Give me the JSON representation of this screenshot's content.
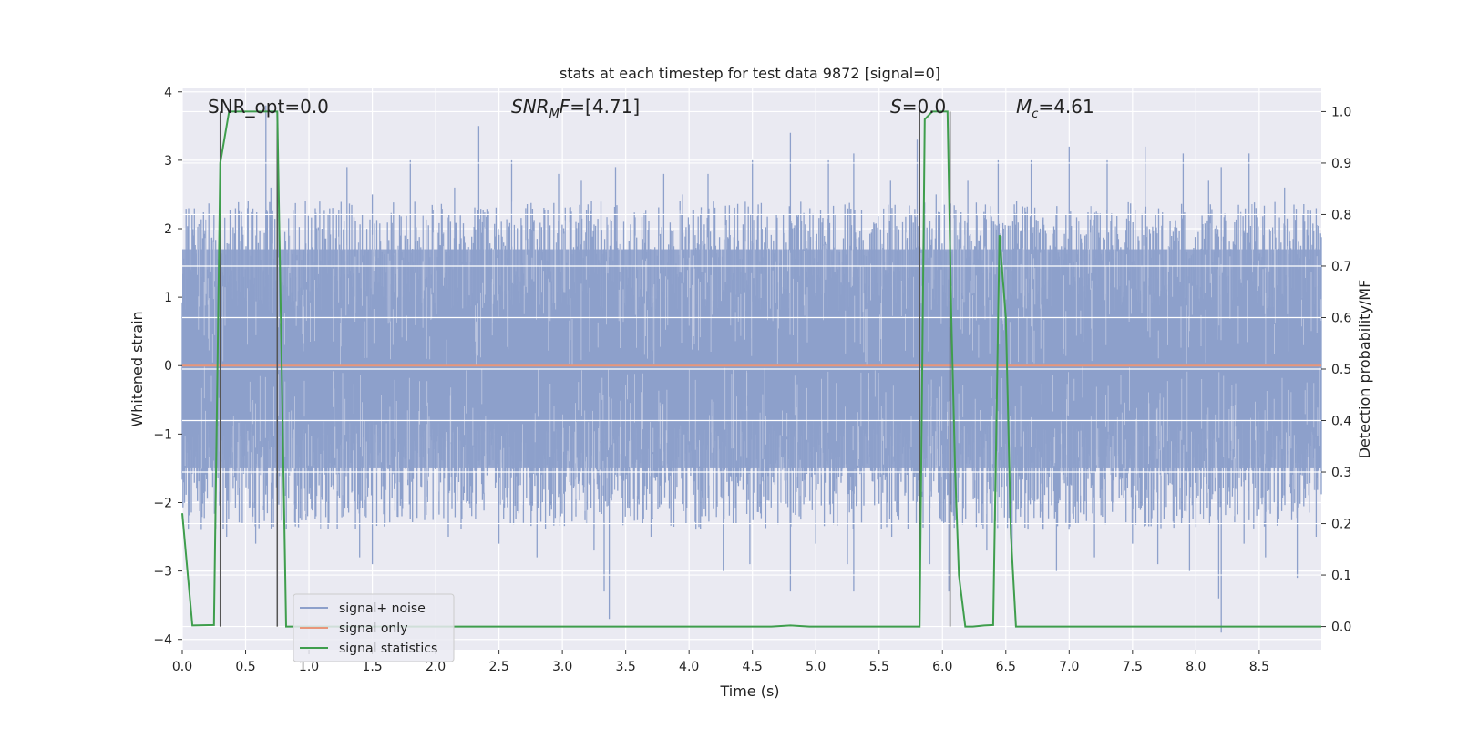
{
  "chart_data": {
    "type": "line",
    "title": "stats at each timestep for test data 9872 [signal=0]",
    "xlabel": "Time (s)",
    "ylabel": "Whitened strain",
    "y2label": "Detection probability/MF",
    "xlim": [
      0.0,
      8.99
    ],
    "ylim": [
      -4.15,
      4.05
    ],
    "y2lim": [
      -0.045,
      1.045
    ],
    "xticks": [
      0.0,
      0.5,
      1.0,
      1.5,
      2.0,
      2.5,
      3.0,
      3.5,
      4.0,
      4.5,
      5.0,
      5.5,
      6.0,
      6.5,
      7.0,
      7.5,
      8.0,
      8.5
    ],
    "xtick_labels": [
      "0.0",
      "0.5",
      "1.0",
      "1.5",
      "2.0",
      "2.5",
      "3.0",
      "3.5",
      "4.0",
      "4.5",
      "5.0",
      "5.5",
      "6.0",
      "6.5",
      "7.0",
      "7.5",
      "8.0",
      "8.5"
    ],
    "yticks": [
      -4,
      -3,
      -2,
      -1,
      0,
      1,
      2,
      3,
      4
    ],
    "ytick_labels": [
      "−4",
      "−3",
      "−2",
      "−1",
      "0",
      "1",
      "2",
      "3",
      "4"
    ],
    "y2ticks": [
      0.0,
      0.1,
      0.2,
      0.3,
      0.4,
      0.5,
      0.6,
      0.7,
      0.8,
      0.9,
      1.0
    ],
    "y2tick_labels": [
      "0.0",
      "0.1",
      "0.2",
      "0.3",
      "0.4",
      "0.5",
      "0.6",
      "0.7",
      "0.8",
      "0.9",
      "1.0"
    ],
    "grid": true,
    "legend_position": "lower-left",
    "annotations": {
      "snr_opt": {
        "prefix": "SNR_opt=",
        "value": "0.0"
      },
      "snr_mf": {
        "base": "SNR",
        "sub": "M",
        "suffix": "F=",
        "value": "[4.71]"
      },
      "s": {
        "prefix": "S",
        "suffix": "=",
        "value": "0.0"
      },
      "mc": {
        "base": "M",
        "sub": "c",
        "suffix": "=",
        "value": "4.61"
      }
    },
    "series": [
      {
        "name": "signal+ noise",
        "color": "#8da0cb",
        "description_kind": "noise",
        "duration_s": 8.99,
        "band_low": -1.5,
        "band_high": 1.7,
        "peaks_high": [
          [
            0.05,
            2.3
          ],
          [
            0.25,
            2.2
          ],
          [
            0.42,
            2.3
          ],
          [
            0.52,
            2.4
          ],
          [
            0.66,
            3.8
          ],
          [
            0.7,
            2.6
          ],
          [
            1.05,
            2.3
          ],
          [
            1.3,
            2.9
          ],
          [
            1.5,
            2.5
          ],
          [
            1.8,
            3.0
          ],
          [
            2.15,
            2.6
          ],
          [
            2.34,
            3.5
          ],
          [
            2.6,
            3.0
          ],
          [
            2.97,
            2.8
          ],
          [
            3.15,
            2.7
          ],
          [
            3.23,
            2.4
          ],
          [
            3.42,
            2.9
          ],
          [
            3.8,
            2.8
          ],
          [
            3.95,
            2.5
          ],
          [
            4.15,
            2.8
          ],
          [
            4.5,
            3.0
          ],
          [
            4.8,
            3.4
          ],
          [
            5.1,
            3.0
          ],
          [
            5.3,
            3.1
          ],
          [
            5.59,
            2.7
          ],
          [
            5.8,
            3.3
          ],
          [
            5.95,
            2.5
          ],
          [
            6.2,
            2.7
          ],
          [
            6.44,
            3.0
          ],
          [
            6.7,
            3.0
          ],
          [
            7.0,
            3.2
          ],
          [
            7.3,
            3.0
          ],
          [
            7.6,
            3.2
          ],
          [
            7.9,
            3.1
          ],
          [
            8.1,
            2.7
          ],
          [
            8.2,
            2.9
          ],
          [
            8.42,
            3.1
          ],
          [
            8.7,
            2.6
          ],
          [
            8.95,
            2.3
          ]
        ],
        "peaks_low": [
          [
            0.15,
            -2.4
          ],
          [
            0.35,
            -2.5
          ],
          [
            0.58,
            -2.6
          ],
          [
            0.9,
            -2.1
          ],
          [
            1.4,
            -2.8
          ],
          [
            1.5,
            -2.9
          ],
          [
            1.6,
            -2.3
          ],
          [
            2.1,
            -2.5
          ],
          [
            2.5,
            -2.6
          ],
          [
            2.8,
            -2.8
          ],
          [
            3.25,
            -2.7
          ],
          [
            3.33,
            -3.3
          ],
          [
            3.37,
            -3.7
          ],
          [
            3.7,
            -2.5
          ],
          [
            4.1,
            -2.2
          ],
          [
            4.27,
            -3.0
          ],
          [
            4.48,
            -2.9
          ],
          [
            4.8,
            -3.3
          ],
          [
            5.0,
            -2.6
          ],
          [
            5.25,
            -2.9
          ],
          [
            5.3,
            -3.3
          ],
          [
            5.6,
            -2.5
          ],
          [
            5.9,
            -2.9
          ],
          [
            6.05,
            -3.3
          ],
          [
            6.35,
            -2.7
          ],
          [
            6.55,
            -2.7
          ],
          [
            6.9,
            -3.0
          ],
          [
            7.2,
            -2.8
          ],
          [
            7.5,
            -2.6
          ],
          [
            7.7,
            -2.9
          ],
          [
            7.95,
            -3.0
          ],
          [
            8.18,
            -3.4
          ],
          [
            8.2,
            -3.9
          ],
          [
            8.38,
            -2.6
          ],
          [
            8.55,
            -2.8
          ],
          [
            8.8,
            -3.1
          ],
          [
            8.95,
            -2.5
          ]
        ]
      },
      {
        "name": "signal only",
        "color": "#e8967a",
        "x": [
          0.0,
          8.99
        ],
        "y": [
          0.0,
          0.0
        ]
      },
      {
        "name": "signal statistics",
        "color": "#3f9e4d",
        "x": [
          0.0,
          0.08,
          0.25,
          0.3,
          0.37,
          0.75,
          0.82,
          4.65,
          4.8,
          4.95,
          5.82,
          5.86,
          5.92,
          5.95,
          6.04,
          6.07,
          6.1,
          6.13,
          6.18,
          6.2,
          6.24,
          6.33,
          6.4,
          6.45,
          6.5,
          6.54,
          6.58,
          8.99
        ],
        "y": [
          0.22,
          0.002,
          0.003,
          0.9,
          1.0,
          1.0,
          0.0,
          0.0,
          0.002,
          0.0,
          0.0,
          0.985,
          1.0,
          1.0,
          1.0,
          0.6,
          0.3,
          0.1,
          0.0,
          0.0,
          0.0,
          0.002,
          0.003,
          0.76,
          0.6,
          0.18,
          0.0,
          0.0
        ]
      }
    ],
    "vlines": [
      0.3,
      0.75,
      5.82,
      6.06
    ]
  }
}
